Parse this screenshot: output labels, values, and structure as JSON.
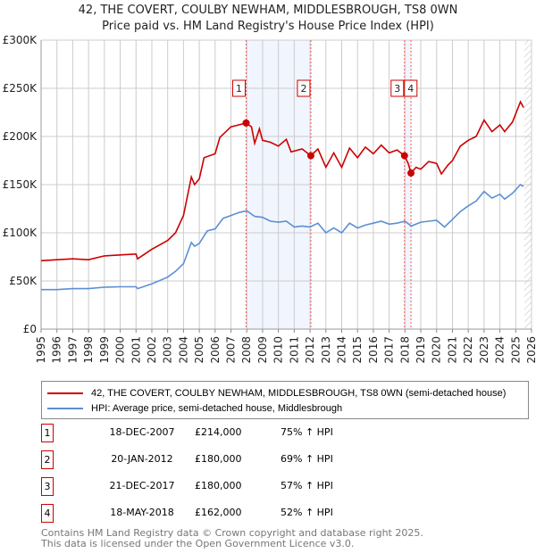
{
  "chart_data": {
    "type": "line",
    "title": "42, THE COVERT, COULBY NEWHAM, MIDDLESBROUGH, TS8 0WN",
    "subtitle": "Price paid vs. HM Land Registry's House Price Index (HPI)",
    "xlim": [
      1995,
      2026
    ],
    "ylim": [
      0,
      300000
    ],
    "x_ticks": [
      "1995",
      "1996",
      "1997",
      "1998",
      "1999",
      "2000",
      "2001",
      "2002",
      "2003",
      "2004",
      "2005",
      "2006",
      "2007",
      "2008",
      "2009",
      "2010",
      "2011",
      "2012",
      "2013",
      "2014",
      "2015",
      "2016",
      "2017",
      "2018",
      "2019",
      "2020",
      "2021",
      "2022",
      "2023",
      "2024",
      "2025",
      "2026"
    ],
    "y_ticks": [
      {
        "v": 0,
        "label": "£0"
      },
      {
        "v": 50000,
        "label": "£50K"
      },
      {
        "v": 100000,
        "label": "£100K"
      },
      {
        "v": 150000,
        "label": "£150K"
      },
      {
        "v": 200000,
        "label": "£200K"
      },
      {
        "v": 250000,
        "label": "£250K"
      },
      {
        "v": 300000,
        "label": "£300K"
      }
    ],
    "grid": true,
    "series": [
      {
        "name": "42, THE COVERT, COULBY NEWHAM, MIDDLESBROUGH, TS8 0WN (semi-detached house)",
        "color": "#cc0000",
        "x": [
          1995,
          1996,
          1997,
          1998,
          1999,
          2000,
          2001,
          2001.1,
          2002,
          2003,
          2003.5,
          2004,
          2004.5,
          2004.7,
          2005,
          2005.3,
          2006,
          2006.3,
          2007,
          2007.5,
          2007.96,
          2008.3,
          2008.5,
          2008.8,
          2009,
          2009.5,
          2010,
          2010.5,
          2010.8,
          2011.5,
          2012.05,
          2012.5,
          2013,
          2013.5,
          2014,
          2014.5,
          2015,
          2015.5,
          2016,
          2016.5,
          2017,
          2017.5,
          2017.97,
          2018.2,
          2018.38,
          2018.7,
          2019,
          2019.5,
          2020,
          2020.3,
          2020.7,
          2021,
          2021.5,
          2022,
          2022.5,
          2023,
          2023.5,
          2024,
          2024.3,
          2024.8,
          2025.3,
          2025.5
        ],
        "y": [
          71000,
          72000,
          73000,
          72000,
          76000,
          77000,
          78000,
          73000,
          83000,
          92000,
          100000,
          118000,
          158000,
          150000,
          156000,
          178000,
          182000,
          199000,
          210000,
          212000,
          214000,
          210000,
          193000,
          208000,
          196000,
          194000,
          190000,
          197000,
          184000,
          187000,
          180000,
          187000,
          168000,
          183000,
          168000,
          188000,
          178000,
          189000,
          182000,
          191000,
          183000,
          186000,
          180000,
          172000,
          162000,
          168000,
          166000,
          174000,
          172000,
          161000,
          170000,
          175000,
          190000,
          196000,
          200000,
          217000,
          205000,
          212000,
          205000,
          215000,
          236000,
          230000
        ]
      },
      {
        "name": "HPI: Average price, semi-detached house, Middlesbrough",
        "color": "#5b8fd4",
        "x": [
          1995,
          1996,
          1997,
          1998,
          1999,
          2000,
          2001,
          2001.1,
          2002,
          2003,
          2003.5,
          2004,
          2004.5,
          2004.7,
          2005,
          2005.5,
          2006,
          2006.5,
          2007,
          2007.5,
          2008,
          2008.5,
          2009,
          2009.5,
          2010,
          2010.5,
          2011,
          2011.5,
          2012,
          2012.5,
          2013,
          2013.5,
          2014,
          2014.5,
          2015,
          2015.5,
          2016,
          2016.5,
          2017,
          2017.5,
          2018,
          2018.4,
          2019,
          2019.5,
          2020,
          2020.5,
          2021,
          2021.5,
          2022,
          2022.5,
          2023,
          2023.5,
          2024,
          2024.3,
          2024.8,
          2025.3,
          2025.5
        ],
        "y": [
          41000,
          41000,
          42000,
          42000,
          43500,
          44000,
          44000,
          42000,
          47000,
          54000,
          60000,
          68000,
          90000,
          86000,
          89000,
          102000,
          104000,
          115000,
          118000,
          121000,
          123000,
          117000,
          116000,
          112000,
          111000,
          112000,
          106000,
          107000,
          106000,
          110000,
          100000,
          105000,
          100000,
          110000,
          105000,
          108000,
          110000,
          112000,
          109000,
          110000,
          112000,
          107000,
          111000,
          112000,
          113000,
          106000,
          114000,
          122000,
          128000,
          133000,
          143000,
          136000,
          140000,
          135000,
          141000,
          150000,
          148000
        ]
      }
    ],
    "sales": [
      {
        "n": "1",
        "x": 2007.96,
        "y": 214000
      },
      {
        "n": "2",
        "x": 2012.05,
        "y": 180000
      },
      {
        "n": "3",
        "x": 2017.97,
        "y": 180000
      },
      {
        "n": "4",
        "x": 2018.38,
        "y": 162000
      }
    ],
    "shaded": [
      [
        2007.96,
        2012.05
      ],
      [
        2017.97,
        2018.38
      ]
    ],
    "forecast_from": 2025.55
  },
  "legend": {
    "property": "42, THE COVERT, COULBY NEWHAM, MIDDLESBROUGH, TS8 0WN (semi-detached house)",
    "hpi": "HPI: Average price, semi-detached house, Middlesbrough"
  },
  "transactions": [
    {
      "n": "1",
      "date": "18-DEC-2007",
      "price": "£214,000",
      "hpi": "75% ↑ HPI"
    },
    {
      "n": "2",
      "date": "20-JAN-2012",
      "price": "£180,000",
      "hpi": "69% ↑ HPI"
    },
    {
      "n": "3",
      "date": "21-DEC-2017",
      "price": "£180,000",
      "hpi": "57% ↑ HPI"
    },
    {
      "n": "4",
      "date": "18-MAY-2018",
      "price": "£162,000",
      "hpi": "52% ↑ HPI"
    }
  ],
  "footer": {
    "line1": "Contains HM Land Registry data © Crown copyright and database right 2025.",
    "line2": "This data is licensed under the Open Government Licence v3.0."
  }
}
